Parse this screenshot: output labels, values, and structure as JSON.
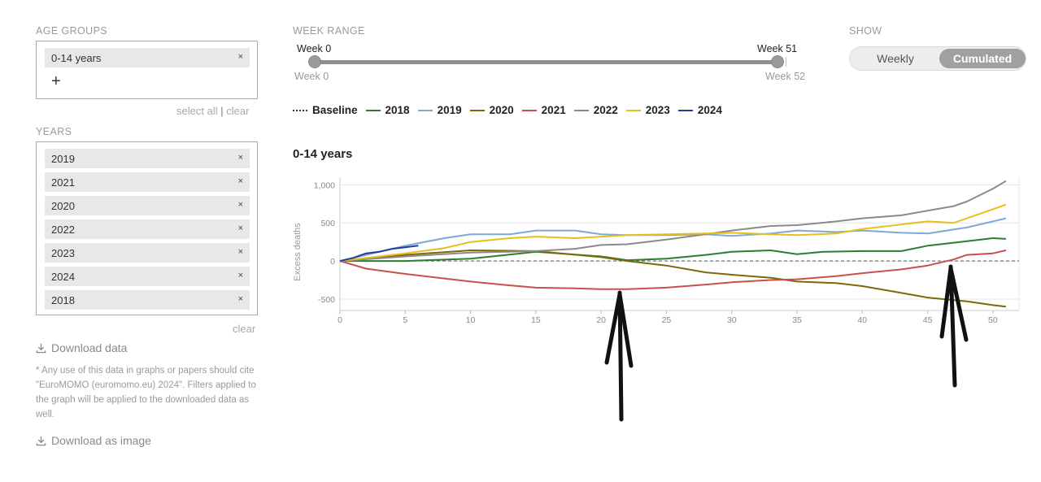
{
  "filters": {
    "age_groups": {
      "label": "AGE GROUPS",
      "chips": [
        {
          "label": "0-14 years",
          "remove": "×"
        }
      ],
      "add_symbol": "+",
      "select_all": "select all",
      "separator": "|",
      "clear": "clear"
    },
    "years": {
      "label": "YEARS",
      "chips": [
        {
          "label": "2019",
          "remove": "×"
        },
        {
          "label": "2021",
          "remove": "×"
        },
        {
          "label": "2020",
          "remove": "×"
        },
        {
          "label": "2022",
          "remove": "×"
        },
        {
          "label": "2023",
          "remove": "×"
        },
        {
          "label": "2024",
          "remove": "×"
        },
        {
          "label": "2018",
          "remove": "×"
        }
      ],
      "clear": "clear"
    },
    "download_data": "Download data",
    "note": "* Any use of this data in graphs or papers should cite \"EuroMOMO (euromomo.eu) 2024\". Filters applied to the graph will be applied to the downloaded data as well.",
    "download_image": "Download as image"
  },
  "week_range": {
    "label": "WEEK RANGE",
    "start_value": "Week 0",
    "end_value": "Week 51",
    "min_label": "Week 0",
    "max_label": "Week 52",
    "start_week": 0,
    "end_week": 51,
    "max_week": 52
  },
  "show": {
    "label": "SHOW",
    "options": [
      "Weekly",
      "Cumulated"
    ],
    "selected": "Cumulated"
  },
  "legend": [
    {
      "name": "Baseline",
      "color": "#333333",
      "style": "dotted"
    },
    {
      "name": "2018",
      "color": "#2e7d32"
    },
    {
      "name": "2019",
      "color": "#7ea9d6"
    },
    {
      "name": "2020",
      "color": "#7a6a0c"
    },
    {
      "name": "2021",
      "color": "#c8504c"
    },
    {
      "name": "2022",
      "color": "#8a8a8a"
    },
    {
      "name": "2023",
      "color": "#e8bf1a"
    },
    {
      "name": "2024",
      "color": "#1f3f9a"
    }
  ],
  "chart_data": {
    "type": "line",
    "title": "0-14 years",
    "ylabel": "Excess deaths",
    "xlabel": "",
    "xlim": [
      0,
      52
    ],
    "ylim": [
      -650,
      1100
    ],
    "x_ticks": [
      "0",
      "5",
      "10",
      "15",
      "20",
      "25",
      "30",
      "35",
      "40",
      "45",
      "50"
    ],
    "y_ticks": [
      "1,000",
      "500",
      "0",
      "-500"
    ],
    "grid": true,
    "baseline": 0,
    "series": [
      {
        "name": "2018",
        "color": "#2e7d32",
        "x": [
          0,
          5,
          10,
          15,
          20,
          22,
          25,
          28,
          30,
          33,
          35,
          37,
          40,
          43,
          45,
          47,
          50,
          51
        ],
        "y": [
          0,
          0,
          30,
          120,
          60,
          10,
          30,
          80,
          120,
          140,
          90,
          120,
          130,
          130,
          200,
          240,
          300,
          290
        ]
      },
      {
        "name": "2019",
        "color": "#7ea9d6",
        "x": [
          0,
          2,
          5,
          8,
          10,
          13,
          15,
          18,
          20,
          22,
          25,
          28,
          30,
          33,
          35,
          38,
          40,
          43,
          45,
          48,
          50,
          51
        ],
        "y": [
          0,
          80,
          200,
          300,
          350,
          350,
          400,
          400,
          350,
          340,
          340,
          350,
          330,
          360,
          400,
          380,
          400,
          370,
          360,
          440,
          520,
          560
        ]
      },
      {
        "name": "2020",
        "color": "#7a6a0c",
        "x": [
          0,
          5,
          10,
          15,
          20,
          22,
          25,
          28,
          30,
          33,
          35,
          38,
          40,
          43,
          45,
          48,
          50,
          51
        ],
        "y": [
          0,
          80,
          140,
          130,
          50,
          0,
          -60,
          -150,
          -180,
          -220,
          -270,
          -290,
          -330,
          -420,
          -480,
          -530,
          -580,
          -600
        ]
      },
      {
        "name": "2021",
        "color": "#c8504c",
        "x": [
          0,
          2,
          5,
          8,
          10,
          13,
          15,
          18,
          20,
          22,
          25,
          28,
          30,
          33,
          35,
          38,
          40,
          43,
          45,
          47,
          48,
          50,
          51
        ],
        "y": [
          0,
          -100,
          -170,
          -230,
          -270,
          -320,
          -350,
          -360,
          -370,
          -370,
          -350,
          -310,
          -280,
          -250,
          -240,
          -200,
          -160,
          -110,
          -60,
          20,
          80,
          100,
          140
        ]
      },
      {
        "name": "2022",
        "color": "#8a8a8a",
        "x": [
          0,
          5,
          10,
          15,
          18,
          20,
          22,
          25,
          28,
          30,
          33,
          35,
          38,
          40,
          43,
          45,
          47,
          48,
          50,
          51
        ],
        "y": [
          0,
          60,
          110,
          130,
          160,
          210,
          220,
          280,
          350,
          400,
          460,
          470,
          520,
          560,
          600,
          660,
          720,
          780,
          950,
          1050
        ]
      },
      {
        "name": "2023",
        "color": "#e8bf1a",
        "x": [
          0,
          5,
          8,
          10,
          13,
          15,
          18,
          20,
          22,
          25,
          28,
          30,
          33,
          35,
          38,
          40,
          43,
          45,
          47,
          48,
          50,
          51
        ],
        "y": [
          0,
          100,
          170,
          250,
          300,
          320,
          300,
          320,
          340,
          350,
          360,
          370,
          350,
          340,
          360,
          420,
          480,
          520,
          500,
          560,
          680,
          740
        ]
      },
      {
        "name": "2024",
        "color": "#1f3f9a",
        "x": [
          0,
          1,
          2,
          3,
          4,
          5,
          6
        ],
        "y": [
          0,
          40,
          100,
          120,
          160,
          180,
          200
        ]
      }
    ]
  }
}
